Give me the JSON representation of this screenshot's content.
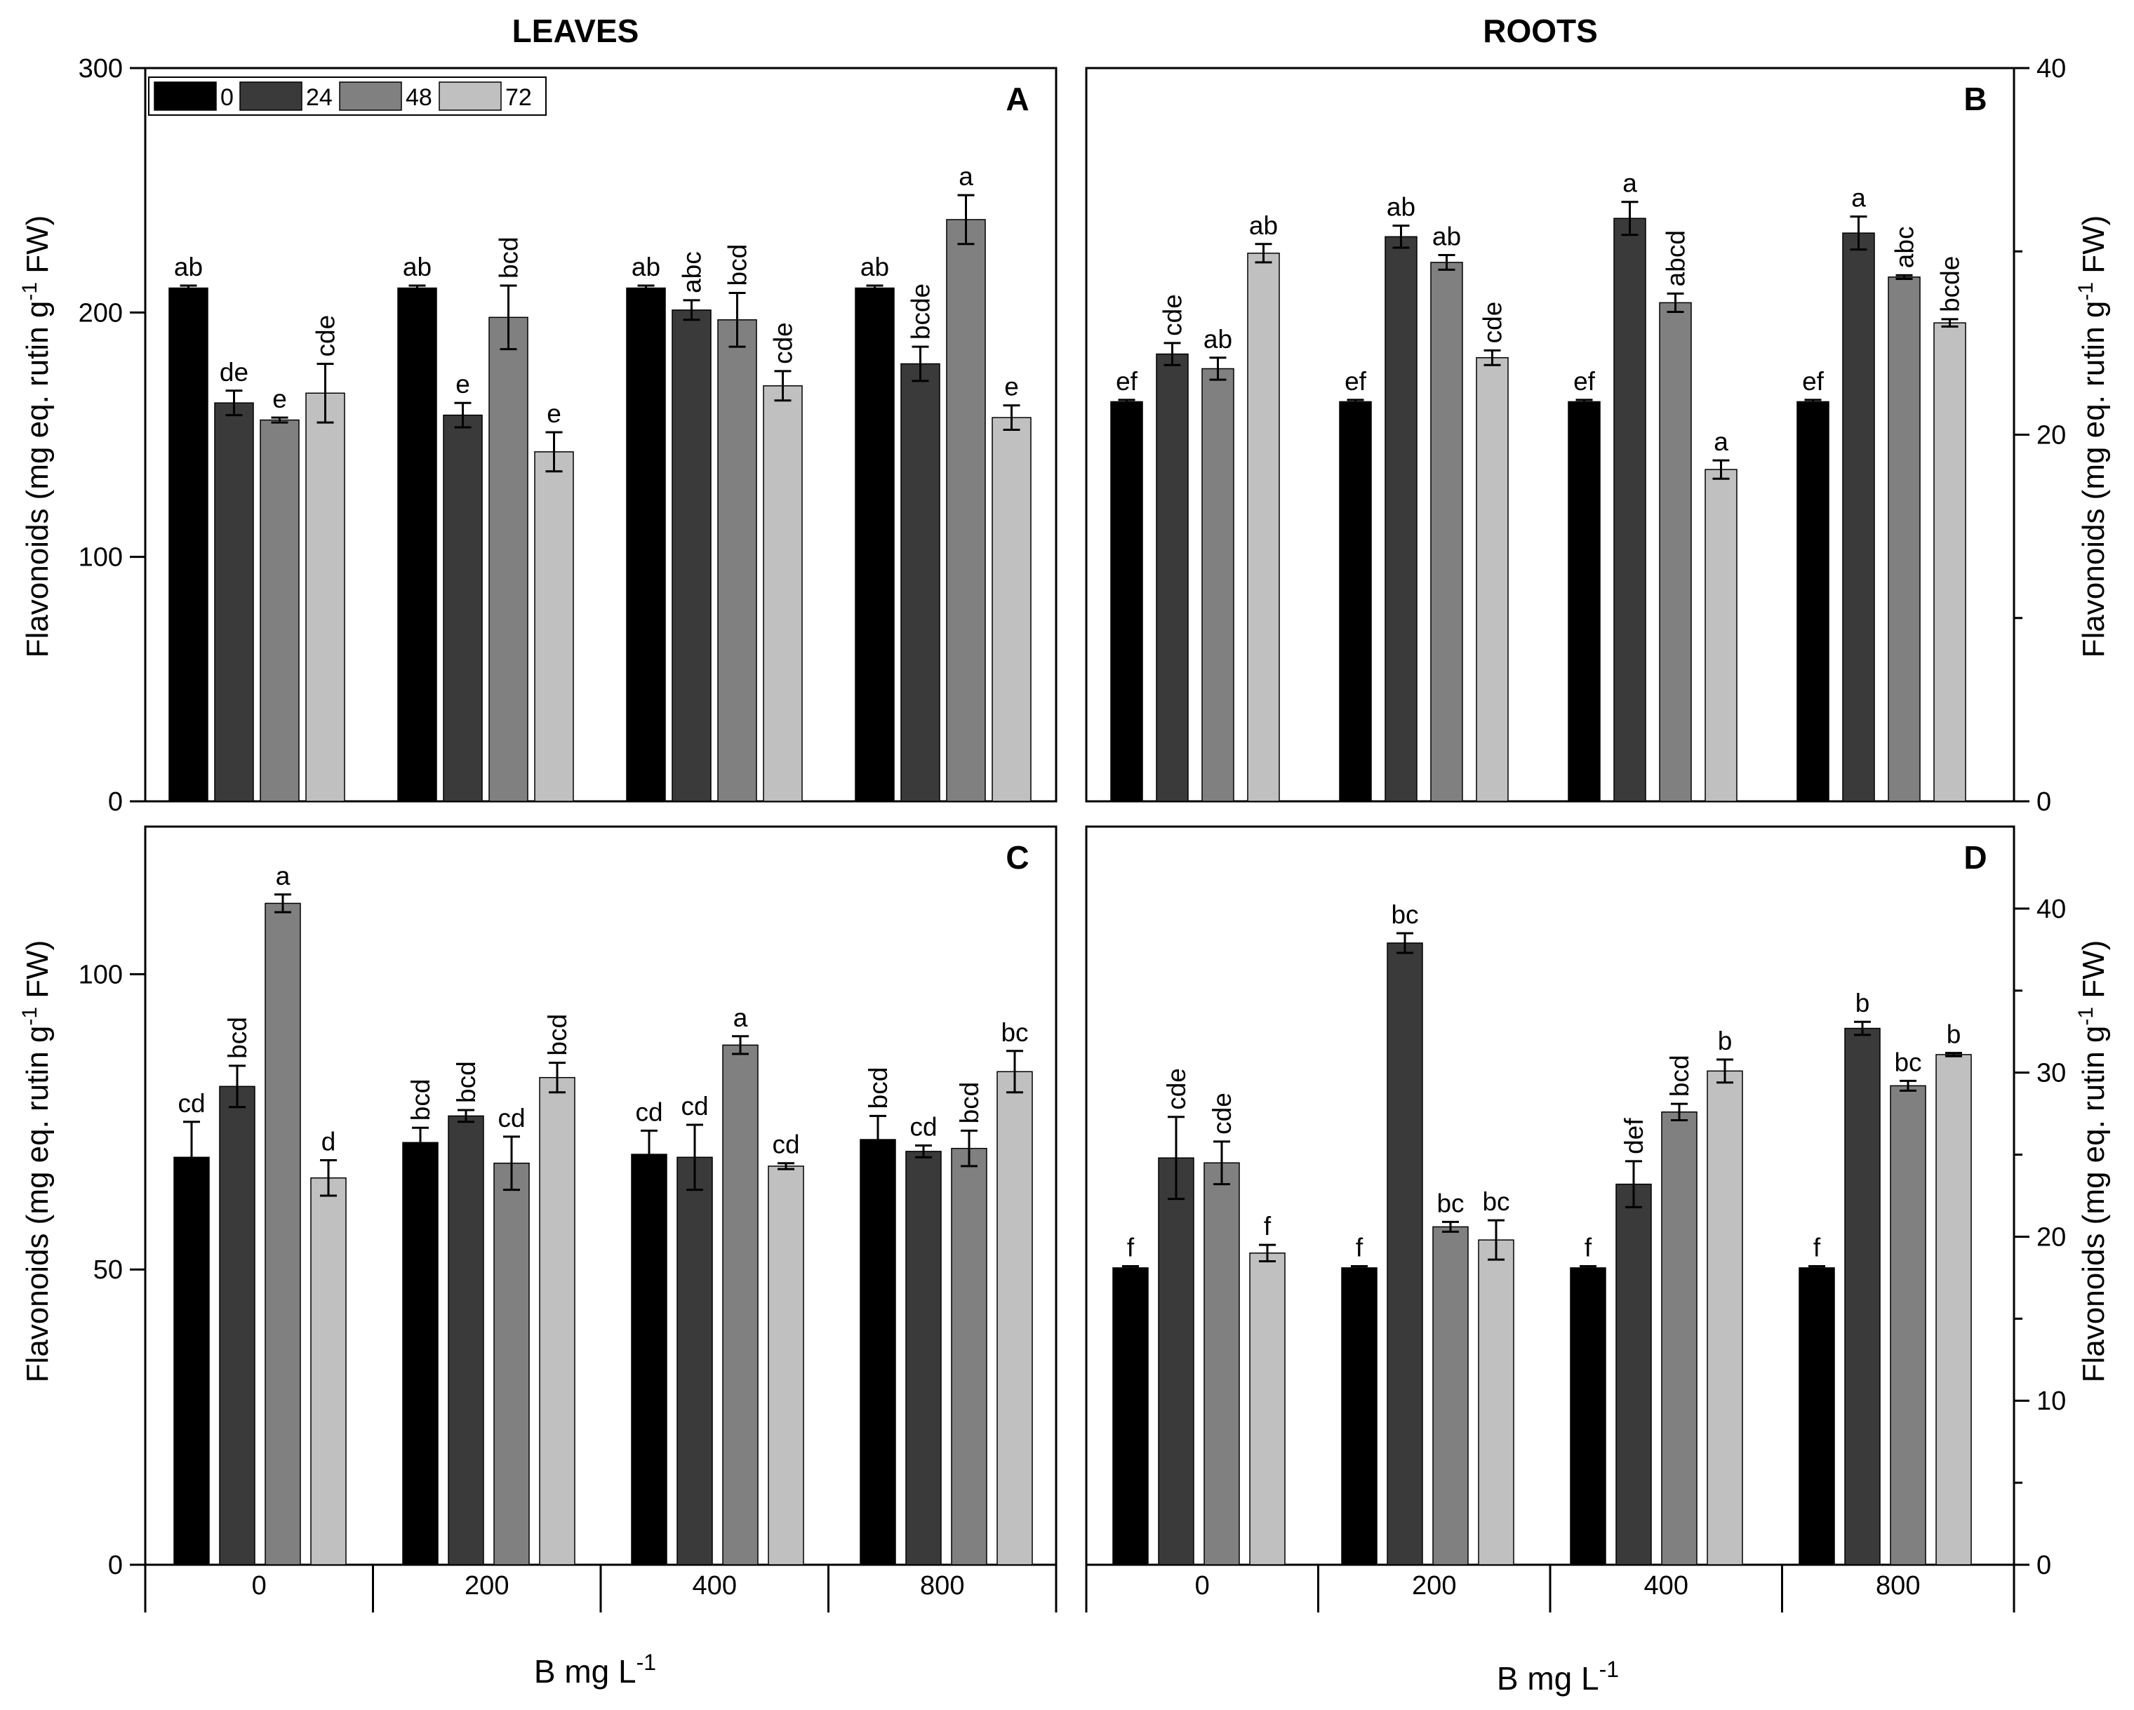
{
  "column_titles": {
    "left": "LEAVES",
    "right": "ROOTS"
  },
  "x_axis_label": {
    "main": "B mg L",
    "sup": "-1"
  },
  "y_axis_label": {
    "main": "Flavonoids (mg eq. rutin g",
    "sup": "-1",
    "tail": " FW)"
  },
  "legend": {
    "labels": [
      "0",
      "24",
      "48",
      "72"
    ]
  },
  "colors": {
    "series": [
      "#000000",
      "#3a3a3a",
      "#808080",
      "#c0c0c0"
    ],
    "axis": "#000000"
  },
  "chart_data": [
    {
      "id": "A",
      "type": "bar",
      "title": "A",
      "categories": [
        "0",
        "200",
        "400",
        "800"
      ],
      "xlabel": "B mg L-1",
      "ylabel": "Flavonoids (mg eq. rutin g-1 FW)",
      "ylim": [
        0,
        300
      ],
      "yticks": [
        0,
        100,
        200,
        300
      ],
      "series": [
        {
          "name": "0",
          "values": [
            210,
            210,
            210,
            210
          ],
          "errors": [
            1,
            1,
            1,
            1
          ],
          "letters": [
            "ab",
            "ab",
            "ab",
            "ab"
          ]
        },
        {
          "name": "24",
          "values": [
            163,
            158,
            201,
            179
          ],
          "errors": [
            5,
            5,
            4,
            7
          ],
          "letters": [
            "de",
            "e",
            "abc",
            "bcde"
          ]
        },
        {
          "name": "48",
          "values": [
            156,
            198,
            197,
            238
          ],
          "errors": [
            1,
            13,
            11,
            10
          ],
          "letters": [
            "e",
            "bcd",
            "bcd",
            "a"
          ]
        },
        {
          "name": "72",
          "values": [
            167,
            143,
            170,
            157
          ],
          "errors": [
            12,
            8,
            6,
            5
          ],
          "letters": [
            "cde",
            "e",
            "cde",
            "e"
          ]
        }
      ]
    },
    {
      "id": "B",
      "type": "bar",
      "title": "B",
      "categories": [
        "0",
        "200",
        "400",
        "800"
      ],
      "xlabel": "B mg L-1",
      "ylabel": "Flavonoids (mg eq. rutin g-1 FW)",
      "ylim": [
        0,
        40
      ],
      "yticks": [
        0,
        20,
        40
      ],
      "ytick_labels": [
        "0",
        "20",
        "40"
      ],
      "minor_yticks": [
        10,
        30
      ],
      "series": [
        {
          "name": "0",
          "values": [
            21.8,
            21.8,
            21.8,
            21.8
          ],
          "errors": [
            0.1,
            0.1,
            0.1,
            0.1
          ],
          "letters": [
            "ef",
            "ef",
            "ef",
            "ef"
          ]
        },
        {
          "name": "24",
          "values": [
            24.4,
            30.8,
            31.8,
            31.0
          ],
          "errors": [
            0.6,
            0.6,
            0.9,
            0.9
          ],
          "letters": [
            "cde",
            "ab",
            "a",
            "a"
          ]
        },
        {
          "name": "48",
          "values": [
            23.6,
            29.4,
            27.2,
            28.6
          ],
          "errors": [
            0.6,
            0.4,
            0.5,
            0.1
          ],
          "letters": [
            "ab",
            "ab",
            "abcd",
            "abc"
          ]
        },
        {
          "name": "72",
          "values": [
            29.9,
            24.2,
            18.1,
            26.1
          ],
          "errors": [
            0.5,
            0.4,
            0.5,
            0.2
          ],
          "letters": [
            "ab",
            "cde",
            "a",
            "bcde"
          ]
        }
      ]
    },
    {
      "id": "C",
      "type": "bar",
      "title": "C",
      "categories": [
        "0",
        "200",
        "400",
        "800"
      ],
      "xlabel": "B mg L-1",
      "ylabel": "Flavonoids (mg eq. rutin g-1 FW)",
      "ylim": [
        0,
        125
      ],
      "yticks": [
        0,
        50,
        100
      ],
      "series": [
        {
          "name": "0",
          "values": [
            69,
            71.5,
            69.5,
            72
          ],
          "errors": [
            6,
            2.5,
            4,
            4
          ],
          "letters": [
            "cd",
            "bcd",
            "cd",
            "bcd"
          ]
        },
        {
          "name": "24",
          "values": [
            81,
            76,
            69,
            70
          ],
          "errors": [
            3.5,
            1,
            5.5,
            1
          ],
          "letters": [
            "bcd",
            "bcd",
            "cd",
            "cd"
          ]
        },
        {
          "name": "48",
          "values": [
            112,
            68,
            88,
            70.5
          ],
          "errors": [
            1.5,
            4.5,
            1.5,
            3
          ],
          "letters": [
            "a",
            "cd",
            "a",
            "bcd"
          ]
        },
        {
          "name": "72",
          "values": [
            65.5,
            82.5,
            67.5,
            83.5
          ],
          "errors": [
            3,
            2.5,
            0.5,
            3.5
          ],
          "letters": [
            "d",
            "bcd",
            "cd",
            "bc"
          ]
        }
      ]
    },
    {
      "id": "D",
      "type": "bar",
      "title": "D",
      "categories": [
        "0",
        "200",
        "400",
        "800"
      ],
      "xlabel": "B mg L-1",
      "ylabel": "Flavonoids (mg eq. rutin g-1 FW)",
      "ylim": [
        0,
        45
      ],
      "yticks": [
        0,
        10,
        20,
        30,
        40
      ],
      "minor_yticks": [
        5,
        15,
        25,
        35
      ],
      "series": [
        {
          "name": "0",
          "values": [
            18.1,
            18.1,
            18.1,
            18.1
          ],
          "errors": [
            0.1,
            0.1,
            0.1,
            0.1
          ],
          "letters": [
            "f",
            "f",
            "f",
            "f"
          ]
        },
        {
          "name": "24",
          "values": [
            24.8,
            37.9,
            23.2,
            32.7
          ],
          "errors": [
            2.5,
            0.6,
            1.4,
            0.4
          ],
          "letters": [
            "cde",
            "bc",
            "def",
            "b"
          ]
        },
        {
          "name": "48",
          "values": [
            24.5,
            20.6,
            27.6,
            29.2
          ],
          "errors": [
            1.3,
            0.3,
            0.5,
            0.3
          ],
          "letters": [
            "cde",
            "bc",
            "bcd",
            "bc"
          ]
        },
        {
          "name": "72",
          "values": [
            19.0,
            19.8,
            30.1,
            31.1
          ],
          "errors": [
            0.5,
            1.2,
            0.7,
            0.1
          ],
          "letters": [
            "f",
            "bc",
            "b",
            "b"
          ]
        }
      ]
    }
  ]
}
